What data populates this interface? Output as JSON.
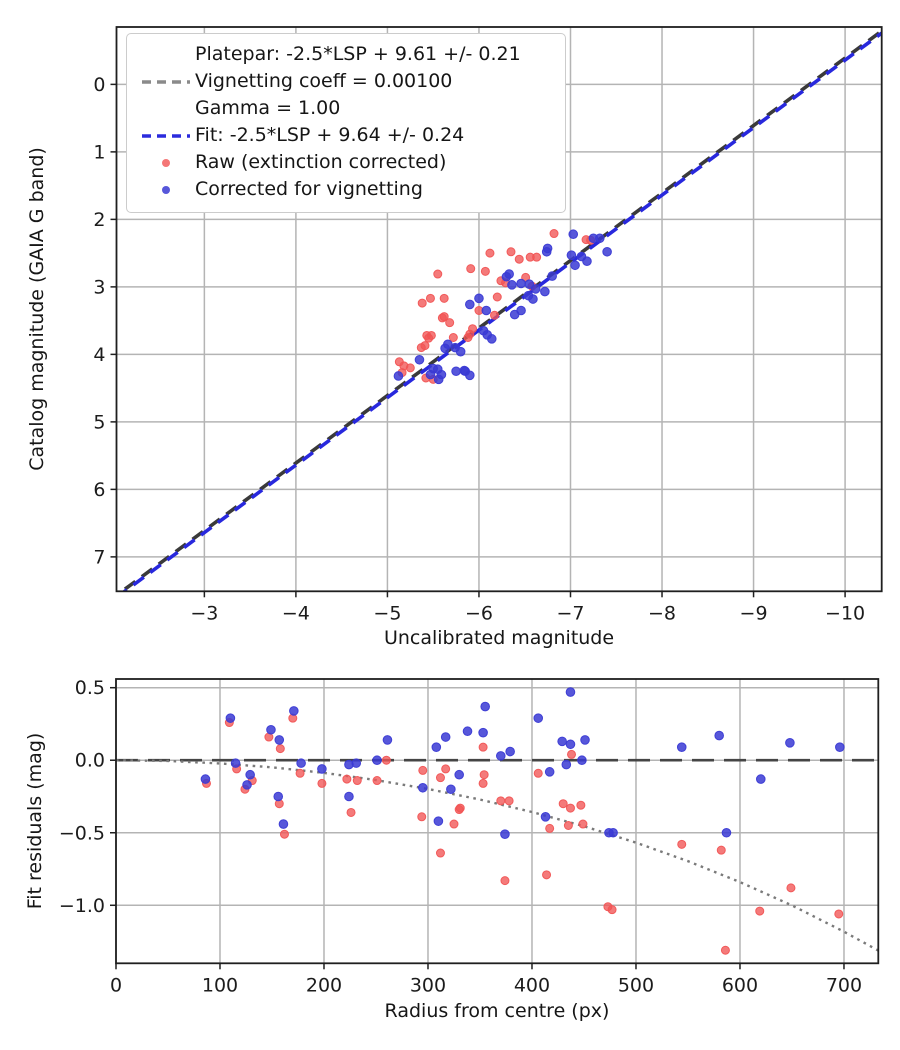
{
  "chart_data": [
    {
      "type": "scatter",
      "title": "",
      "xlabel": "Uncalibrated magnitude",
      "ylabel": "Catalog magnitude (GAIA G band)",
      "xlim": [
        -2.04,
        -10.4
      ],
      "ylim": [
        -0.85,
        7.51
      ],
      "grid": true,
      "xticks": [
        [
          -3,
          "−3"
        ],
        [
          -4,
          "−4"
        ],
        [
          -5,
          "−5"
        ],
        [
          -6,
          "−6"
        ],
        [
          -7,
          "−7"
        ],
        [
          -8,
          "−8"
        ],
        [
          -9,
          "−9"
        ],
        [
          -10,
          "−10"
        ]
      ],
      "yticks": [
        [
          0,
          "0"
        ],
        [
          1,
          "1"
        ],
        [
          2,
          "2"
        ],
        [
          3,
          "3"
        ],
        [
          4,
          "4"
        ],
        [
          5,
          "5"
        ],
        [
          6,
          "6"
        ],
        [
          7,
          "7"
        ]
      ],
      "legend": {
        "position": "upper left",
        "platepar": {
          "label_lines": [
            "Platepar: -2.5*LSP + 9.61 +/- 0.21",
            "Vignetting coeff = 0.00100",
            "Gamma = 1.00"
          ],
          "color": "#8a8a8a"
        },
        "fit": {
          "label": "Fit: -2.5*LSP + 9.64 +/- 0.24",
          "color": "#2b2bdd"
        },
        "raw": {
          "label": "Raw (extinction corrected)",
          "color": "#f15454"
        },
        "corrected": {
          "label": "Corrected for vignetting",
          "color": "#3a3ad4"
        }
      },
      "platepar_line": {
        "slope": 1,
        "intercept": 9.61,
        "vignetting_coeff": 0.001,
        "gamma": 1.0,
        "color": "#3a3a3a",
        "style": "dashed"
      },
      "fit_line": {
        "slope": 1,
        "intercept": 9.64,
        "color": "#2828dd",
        "style": "dashed"
      },
      "series": [
        {
          "name": "Raw (extinction corrected)",
          "color": "#f15454",
          "marker_radius": 4.0,
          "points": [
            [
              -6.12,
              2.5
            ],
            [
              -5.91,
              2.73
            ],
            [
              -6.07,
              2.77
            ],
            [
              -5.55,
              2.81
            ],
            [
              -6.24,
              2.91
            ],
            [
              -6.2,
              3.15
            ],
            [
              -5.47,
              3.17
            ],
            [
              -5.62,
              3.17
            ],
            [
              -5.38,
              3.24
            ],
            [
              -6.0,
              3.35
            ],
            [
              -5.62,
              3.44
            ],
            [
              -6.17,
              3.42
            ],
            [
              -6.82,
              2.21
            ],
            [
              -7.17,
              2.3
            ],
            [
              -6.35,
              2.48
            ],
            [
              -6.44,
              2.59
            ],
            [
              -6.63,
              2.56
            ],
            [
              -6.56,
              2.56
            ],
            [
              -6.51,
              2.86
            ],
            [
              -6.29,
              2.94
            ],
            [
              -6.58,
              2.99
            ],
            [
              -5.6,
              3.46
            ],
            [
              -5.68,
              3.53
            ],
            [
              -5.43,
              3.72
            ],
            [
              -5.48,
              3.72
            ],
            [
              -5.37,
              3.9
            ],
            [
              -5.41,
              3.87
            ],
            [
              -5.9,
              3.7
            ],
            [
              -5.93,
              3.62
            ],
            [
              -5.13,
              4.11
            ],
            [
              -5.18,
              4.17
            ],
            [
              -5.25,
              4.2
            ],
            [
              -5.16,
              4.27
            ],
            [
              -5.42,
              4.35
            ],
            [
              -5.5,
              4.37
            ],
            [
              -7.22,
              2.31
            ],
            [
              -5.45,
              3.76
            ],
            [
              -5.72,
              3.75
            ],
            [
              -5.88,
              3.75
            ]
          ]
        },
        {
          "name": "Corrected for vignetting",
          "color": "#3a3ad4",
          "marker_radius": 4.3,
          "points": [
            [
              -6.3,
              2.85
            ],
            [
              -6.0,
              3.17
            ],
            [
              -5.9,
              3.26
            ],
            [
              -6.08,
              3.35
            ],
            [
              -7.03,
              2.22
            ],
            [
              -7.25,
              2.28
            ],
            [
              -7.01,
              2.53
            ],
            [
              -7.12,
              2.55
            ],
            [
              -7.05,
              2.68
            ],
            [
              -7.18,
              2.62
            ],
            [
              -6.74,
              2.48
            ],
            [
              -6.33,
              2.81
            ],
            [
              -6.36,
              2.97
            ],
            [
              -6.46,
              2.95
            ],
            [
              -6.55,
              2.96
            ],
            [
              -6.62,
              3.03
            ],
            [
              -6.54,
              3.13
            ],
            [
              -6.59,
              3.18
            ],
            [
              -6.72,
              3.07
            ],
            [
              -6.46,
              3.35
            ],
            [
              -6.39,
              3.41
            ],
            [
              -5.63,
              3.91
            ],
            [
              -6.05,
              3.65
            ],
            [
              -6.09,
              3.71
            ],
            [
              -6.14,
              3.77
            ],
            [
              -5.35,
              4.08
            ],
            [
              -5.12,
              4.32
            ],
            [
              -5.47,
              4.3
            ],
            [
              -5.55,
              4.22
            ],
            [
              -5.59,
              4.3
            ],
            [
              -5.56,
              4.37
            ],
            [
              -5.75,
              4.25
            ],
            [
              -5.84,
              4.24
            ],
            [
              -7.4,
              2.48
            ],
            [
              -7.32,
              2.28
            ],
            [
              -6.75,
              2.43
            ],
            [
              -6.8,
              2.84
            ],
            [
              -5.66,
              3.85
            ],
            [
              -5.74,
              3.9
            ],
            [
              -5.8,
              3.96
            ],
            [
              -5.5,
              4.21
            ],
            [
              -5.85,
              4.25
            ],
            [
              -5.9,
              4.31
            ]
          ]
        }
      ]
    },
    {
      "type": "scatter",
      "title": "",
      "xlabel": "Radius from centre (px)",
      "ylabel": "Fit residuals (mag)",
      "xlim": [
        0,
        733
      ],
      "ylim": [
        0.56,
        -1.4
      ],
      "grid": true,
      "xticks": [
        [
          0,
          "0"
        ],
        [
          100,
          "100"
        ],
        [
          200,
          "200"
        ],
        [
          300,
          "300"
        ],
        [
          400,
          "400"
        ],
        [
          500,
          "500"
        ],
        [
          600,
          "600"
        ],
        [
          700,
          "700"
        ]
      ],
      "yticks": [
        [
          0.5,
          "0.5"
        ],
        [
          0.0,
          "0.0"
        ],
        [
          -0.5,
          "−0.5"
        ],
        [
          -1.0,
          "−1.0"
        ]
      ],
      "zero_line": {
        "y": 0.0,
        "color": "#454545",
        "style": "dashed"
      },
      "vignetting_curve": {
        "color": "#7a7a7a",
        "style": "dotted",
        "points": [
          [
            0,
            0
          ],
          [
            50,
            -0.005
          ],
          [
            100,
            -0.022
          ],
          [
            150,
            -0.049
          ],
          [
            200,
            -0.087
          ],
          [
            250,
            -0.137
          ],
          [
            300,
            -0.198
          ],
          [
            350,
            -0.271
          ],
          [
            400,
            -0.357
          ],
          [
            450,
            -0.455
          ],
          [
            500,
            -0.568
          ],
          [
            550,
            -0.696
          ],
          [
            600,
            -0.84
          ],
          [
            650,
            -1.001
          ],
          [
            700,
            -1.182
          ],
          [
            733,
            -1.312
          ]
        ]
      },
      "series": [
        {
          "name": "Raw (extinction corrected)",
          "color": "#f15454",
          "marker_radius": 4.0,
          "points": [
            [
              87,
              -0.16
            ],
            [
              109,
              0.26
            ],
            [
              116,
              -0.06
            ],
            [
              124,
              -0.2
            ],
            [
              131,
              -0.14
            ],
            [
              147,
              0.16
            ],
            [
              158,
              0.08
            ],
            [
              157,
              -0.3
            ],
            [
              162,
              -0.51
            ],
            [
              170,
              0.29
            ],
            [
              177,
              -0.09
            ],
            [
              198,
              -0.16
            ],
            [
              222,
              -0.13
            ],
            [
              226,
              -0.36
            ],
            [
              232,
              -0.14
            ],
            [
              251,
              -0.14
            ],
            [
              260,
              0.0
            ],
            [
              295,
              -0.07
            ],
            [
              294,
              -0.39
            ],
            [
              312,
              -0.12
            ],
            [
              317,
              -0.06
            ],
            [
              312,
              -0.64
            ],
            [
              325,
              -0.44
            ],
            [
              330,
              -0.34
            ],
            [
              331,
              -0.33
            ],
            [
              353,
              0.09
            ],
            [
              353,
              -0.16
            ],
            [
              354,
              -0.1
            ],
            [
              370,
              -0.28
            ],
            [
              378,
              -0.28
            ],
            [
              374,
              -0.83
            ],
            [
              406,
              -0.09
            ],
            [
              414,
              -0.79
            ],
            [
              417,
              -0.47
            ],
            [
              430,
              -0.3
            ],
            [
              435,
              -0.45
            ],
            [
              437,
              -0.33
            ],
            [
              438,
              0.04
            ],
            [
              447,
              -0.31
            ],
            [
              449,
              -0.44
            ],
            [
              473,
              -1.01
            ],
            [
              477,
              -1.03
            ],
            [
              544,
              -0.58
            ],
            [
              582,
              -0.62
            ],
            [
              586,
              -1.31
            ],
            [
              619,
              -1.04
            ],
            [
              649,
              -0.88
            ],
            [
              695,
              -1.06
            ]
          ]
        },
        {
          "name": "Corrected for vignetting",
          "color": "#3a3ad4",
          "marker_radius": 4.3,
          "points": [
            [
              86,
              -0.13
            ],
            [
              110,
              0.29
            ],
            [
              115,
              -0.02
            ],
            [
              126,
              -0.17
            ],
            [
              129,
              -0.1
            ],
            [
              149,
              0.21
            ],
            [
              157,
              0.14
            ],
            [
              156,
              -0.25
            ],
            [
              161,
              -0.44
            ],
            [
              171,
              0.34
            ],
            [
              178,
              -0.02
            ],
            [
              198,
              -0.06
            ],
            [
              224,
              -0.03
            ],
            [
              224,
              -0.25
            ],
            [
              231,
              -0.02
            ],
            [
              251,
              0.0
            ],
            [
              261,
              0.14
            ],
            [
              295,
              -0.19
            ],
            [
              308,
              0.09
            ],
            [
              310,
              -0.42
            ],
            [
              317,
              0.16
            ],
            [
              322,
              -0.2
            ],
            [
              330,
              -0.1
            ],
            [
              338,
              0.2
            ],
            [
              353,
              0.19
            ],
            [
              355,
              0.37
            ],
            [
              370,
              0.03
            ],
            [
              374,
              -0.51
            ],
            [
              379,
              0.06
            ],
            [
              406,
              0.29
            ],
            [
              413,
              -0.39
            ],
            [
              417,
              -0.08
            ],
            [
              429,
              0.13
            ],
            [
              433,
              -0.03
            ],
            [
              437,
              0.47
            ],
            [
              437,
              0.11
            ],
            [
              448,
              0.0
            ],
            [
              451,
              0.14
            ],
            [
              474,
              -0.5
            ],
            [
              478,
              -0.5
            ],
            [
              544,
              0.09
            ],
            [
              580,
              0.17
            ],
            [
              587,
              -0.5
            ],
            [
              620,
              -0.13
            ],
            [
              648,
              0.12
            ],
            [
              696,
              0.09
            ]
          ]
        }
      ]
    }
  ],
  "style": {
    "grid_color": "#b4b4b4",
    "spine_color": "#1f1f1f",
    "tick_label_color": "#1c1c1c",
    "background": "#ffffff"
  }
}
